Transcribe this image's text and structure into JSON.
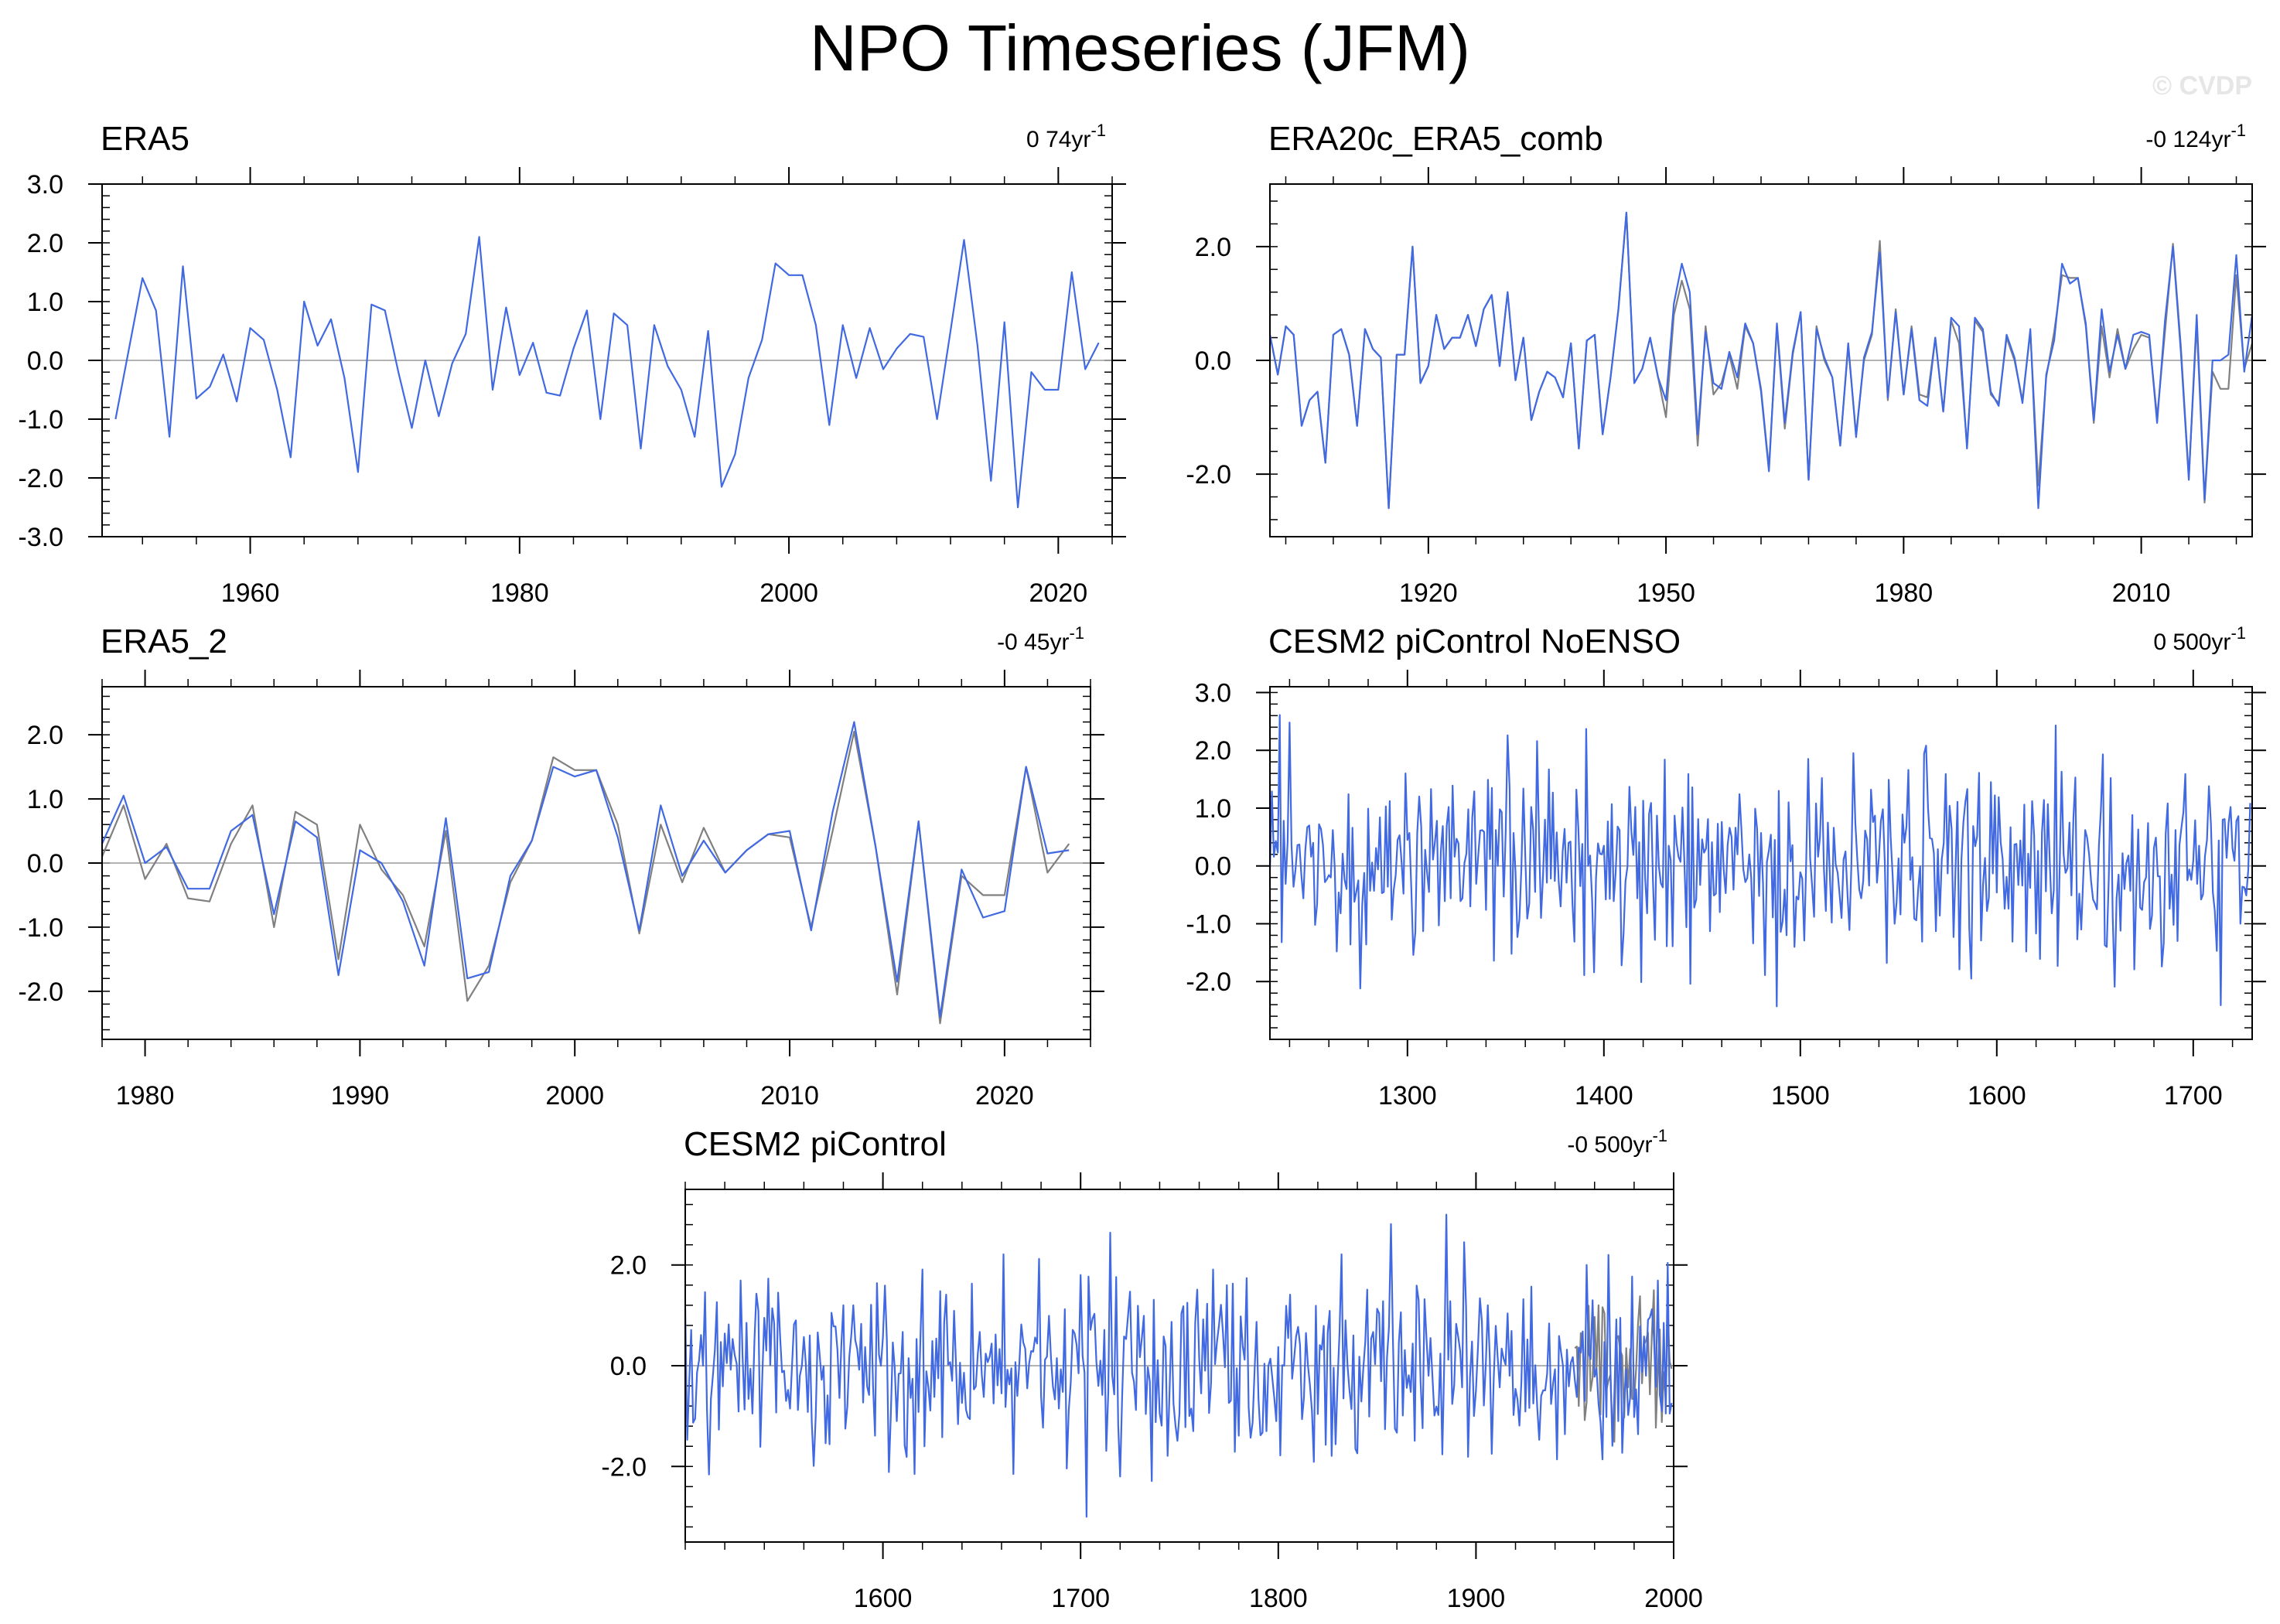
{
  "figure": {
    "title": "NPO Timeseries (JFM)",
    "watermark": "© CVDP",
    "colors": {
      "primary": "#4169e1",
      "secondary": "#808080",
      "axis": "#000000",
      "zero": "#999999"
    }
  },
  "chart_data": [
    {
      "type": "line",
      "title": "ERA5",
      "trend": "0 74yr",
      "trend_sup": "-1",
      "xlim": [
        1949,
        2024
      ],
      "ylim": [
        -3.0,
        3.0
      ],
      "xticks": [
        1960,
        1980,
        2000,
        2020
      ],
      "yticks": [
        -3.0,
        -2.0,
        -1.0,
        0.0,
        1.0,
        2.0,
        3.0
      ],
      "series": [
        {
          "name": "ERA5",
          "color": "#4169e1",
          "start": 1950,
          "values": [
            -1.0,
            0.2,
            1.4,
            0.85,
            -1.3,
            1.6,
            -0.65,
            -0.45,
            0.1,
            -0.7,
            0.55,
            0.35,
            -0.5,
            -1.65,
            1.0,
            0.25,
            0.7,
            -0.3,
            -1.9,
            0.95,
            0.85,
            -0.2,
            -1.15,
            0.0,
            -0.95,
            -0.05,
            0.45,
            2.1,
            -0.5,
            0.9,
            -0.25,
            0.3,
            -0.55,
            -0.6,
            0.2,
            0.85,
            -1.0,
            0.8,
            0.6,
            -1.5,
            0.6,
            -0.1,
            -0.5,
            -1.3,
            0.5,
            -2.15,
            -1.6,
            -0.3,
            0.35,
            1.65,
            1.45,
            1.45,
            0.6,
            -1.1,
            0.6,
            -0.3,
            0.55,
            -0.15,
            0.2,
            0.45,
            0.4,
            -1.0,
            0.5,
            2.05,
            0.25,
            -2.05,
            0.65,
            -2.5,
            -0.2,
            -0.5,
            -0.5,
            1.5,
            -0.15,
            0.3
          ]
        }
      ]
    },
    {
      "type": "line",
      "title": "ERA20c_ERA5_comb",
      "trend": "-0 124yr",
      "trend_sup": "-1",
      "xlim": [
        1900,
        2024
      ],
      "ylim": [
        -3.1,
        3.1
      ],
      "xticks": [
        1920,
        1950,
        1980,
        2010
      ],
      "yticks": [
        -2.0,
        0.0,
        2.0
      ],
      "series": [
        {
          "name": "ERA20c",
          "color": "#808080",
          "start": 1900,
          "values": [
            0.45,
            -0.25,
            0.6,
            0.45,
            -1.15,
            -0.7,
            -0.55,
            -1.8,
            0.45,
            0.55,
            0.1,
            -1.15,
            0.55,
            0.2,
            0.05,
            -2.6,
            0.1,
            0.1,
            2.0,
            -0.4,
            -0.1,
            0.8,
            0.2,
            0.4,
            0.4,
            0.8,
            0.25,
            0.9,
            1.15,
            -0.1,
            1.2,
            -0.35,
            0.4,
            -1.05,
            -0.55,
            -0.2,
            -0.3,
            -0.65,
            0.3,
            -1.55,
            0.35,
            0.45,
            -1.3,
            -0.3,
            0.9,
            2.6,
            -0.4,
            -0.15,
            0.4,
            -0.3,
            -1.0,
            0.8,
            1.4,
            0.9,
            -1.5,
            0.6,
            -0.6,
            -0.4,
            0.1,
            -0.5,
            0.6,
            0.3,
            -0.5,
            -1.9,
            0.6,
            -1.2,
            0.1,
            0.85,
            -2.1,
            0.6,
            0.0,
            -0.3,
            -1.5,
            0.25,
            -1.3,
            0.0,
            0.45,
            2.1,
            -0.7,
            0.9,
            -0.6,
            0.6,
            -0.6,
            -0.65,
            0.4,
            -0.9,
            0.7,
            0.3,
            -1.5,
            0.7,
            0.5,
            -0.6,
            -0.75,
            0.4,
            0.0,
            -0.7,
            0.5,
            -2.2,
            -0.3,
            0.5,
            1.5,
            1.45,
            1.45,
            0.6,
            -1.1,
            0.6,
            -0.3,
            0.55,
            -0.15,
            0.2,
            0.45,
            0.4,
            -1.0,
            0.5,
            2.05,
            0.25,
            -2.05,
            0.65,
            -2.5,
            -0.2,
            -0.5,
            -0.5,
            1.5,
            -0.15,
            0.3
          ]
        },
        {
          "name": "ERA5",
          "color": "#4169e1",
          "start": 1900,
          "values": [
            0.45,
            -0.25,
            0.6,
            0.45,
            -1.15,
            -0.7,
            -0.55,
            -1.8,
            0.45,
            0.55,
            0.1,
            -1.15,
            0.55,
            0.2,
            0.05,
            -2.6,
            0.1,
            0.1,
            2.0,
            -0.4,
            -0.1,
            0.8,
            0.2,
            0.4,
            0.4,
            0.8,
            0.25,
            0.9,
            1.15,
            -0.1,
            1.2,
            -0.35,
            0.4,
            -1.05,
            -0.55,
            -0.2,
            -0.3,
            -0.65,
            0.3,
            -1.55,
            0.35,
            0.45,
            -1.3,
            -0.3,
            0.9,
            2.6,
            -0.4,
            -0.15,
            0.4,
            -0.3,
            -0.7,
            1.0,
            1.7,
            1.2,
            -1.3,
            0.5,
            -0.4,
            -0.5,
            0.15,
            -0.3,
            0.65,
            0.3,
            -0.55,
            -1.95,
            0.65,
            -1.1,
            0.15,
            0.85,
            -2.1,
            0.55,
            0.05,
            -0.3,
            -1.5,
            0.3,
            -1.35,
            0.05,
            0.5,
            1.9,
            -0.65,
            0.85,
            -0.6,
            0.55,
            -0.7,
            -0.8,
            0.4,
            -0.9,
            0.75,
            0.6,
            -1.55,
            0.75,
            0.55,
            -0.55,
            -0.8,
            0.45,
            0.05,
            -0.75,
            0.55,
            -2.6,
            -0.25,
            0.35,
            1.7,
            1.35,
            1.45,
            0.65,
            -1.05,
            0.9,
            -0.2,
            0.45,
            -0.15,
            0.45,
            0.5,
            0.45,
            -1.1,
            0.7,
            2.0,
            0.15,
            -2.1,
            0.8,
            -2.45,
            0.0,
            0.0,
            0.1,
            1.85,
            -0.2,
            0.8
          ]
        }
      ]
    },
    {
      "type": "line",
      "title": "ERA5_2",
      "trend": "-0 45yr",
      "trend_sup": "-1",
      "xlim": [
        1978,
        2024
      ],
      "ylim": [
        -2.75,
        2.75
      ],
      "xticks": [
        1980,
        1990,
        2000,
        2010,
        2020
      ],
      "yticks": [
        -2.0,
        -1.0,
        0.0,
        1.0,
        2.0
      ],
      "series": [
        {
          "name": "ERA5",
          "color": "#808080",
          "start": 1978,
          "values": [
            0.1,
            0.9,
            -0.25,
            0.3,
            -0.55,
            -0.6,
            0.3,
            0.9,
            -1.0,
            0.8,
            0.6,
            -1.5,
            0.6,
            -0.1,
            -0.5,
            -1.3,
            0.5,
            -2.15,
            -1.6,
            -0.3,
            0.35,
            1.65,
            1.45,
            1.45,
            0.6,
            -1.1,
            0.6,
            -0.3,
            0.55,
            -0.15,
            0.2,
            0.45,
            0.4,
            -1.0,
            0.5,
            2.05,
            0.25,
            -2.05,
            0.65,
            -2.5,
            -0.2,
            -0.5,
            -0.5,
            1.5,
            -0.15,
            0.3
          ]
        },
        {
          "name": "ERA5_2",
          "color": "#4169e1",
          "start": 1978,
          "values": [
            0.3,
            1.05,
            0.0,
            0.25,
            -0.4,
            -0.4,
            0.5,
            0.75,
            -0.8,
            0.65,
            0.4,
            -1.75,
            0.2,
            0.0,
            -0.6,
            -1.6,
            0.7,
            -1.8,
            -1.7,
            -0.2,
            0.35,
            1.5,
            1.35,
            1.45,
            0.4,
            -1.05,
            0.9,
            -0.2,
            0.35,
            -0.15,
            0.2,
            0.45,
            0.5,
            -1.05,
            0.8,
            2.2,
            0.25,
            -1.85,
            0.65,
            -2.4,
            -0.1,
            -0.85,
            -0.75,
            1.5,
            0.15,
            0.2
          ]
        }
      ]
    },
    {
      "type": "line",
      "title": "CESM2 piControl NoENSO",
      "trend": "0 500yr",
      "trend_sup": "-1",
      "xlim": [
        1230,
        1730
      ],
      "ylim": [
        -3.0,
        3.1
      ],
      "xticks": [
        1300,
        1400,
        1500,
        1600,
        1700
      ],
      "yticks": [
        -2.0,
        -1.0,
        0.0,
        1.0,
        2.0,
        3.0
      ],
      "series": [
        {
          "name": "NoENSO",
          "color": "#4169e1",
          "start": 1230,
          "length": 500,
          "seed": 11,
          "scale": 0.9,
          "clip": 2.8
        }
      ]
    },
    {
      "type": "line",
      "title": "CESM2 piControl",
      "trend": "-0 500yr",
      "trend_sup": "-1",
      "xlim": [
        1500,
        2000
      ],
      "ylim": [
        -3.5,
        3.5
      ],
      "xticks": [
        1600,
        1700,
        1800,
        1900,
        2000
      ],
      "yticks": [
        -2.0,
        0.0,
        2.0
      ],
      "series": [
        {
          "name": "piControl-overlay",
          "color": "#808080",
          "start": 1950,
          "length": 50,
          "seed": 5,
          "scale": 0.75,
          "clip": 2.4
        },
        {
          "name": "piControl",
          "color": "#4169e1",
          "start": 1500,
          "length": 500,
          "seed": 29,
          "scale": 1.0,
          "clip": 3.0
        }
      ]
    }
  ]
}
